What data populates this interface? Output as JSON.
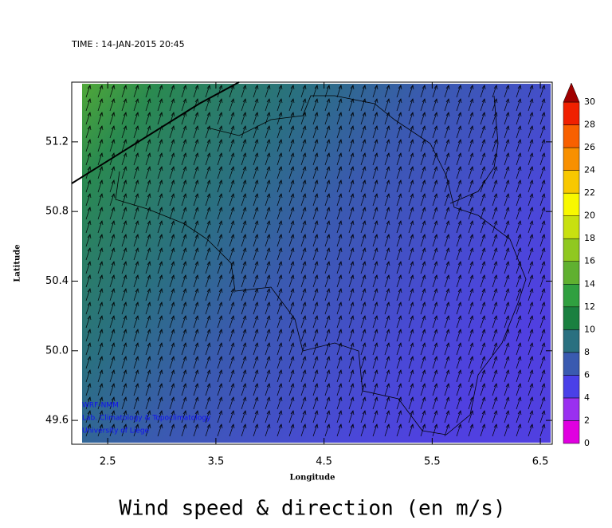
{
  "time_label": "TIME : 14-JAN-2015 20:45",
  "chart_data": {
    "type": "map",
    "title": "Wind speed & direction (en m/s)",
    "x_label": "Longitude",
    "y_label": "Latitude",
    "xlim": [
      2.167,
      6.61
    ],
    "xticks": [
      2.5,
      3.5,
      4.5,
      5.5,
      6.5
    ],
    "ylim": [
      49.463,
      51.543
    ],
    "yticks": [
      49.6,
      {
        "value": 50,
        "label": "50.0"
      },
      50.4,
      50.8,
      51.2
    ],
    "colorbar": {
      "levels": [
        0,
        2,
        4,
        6,
        8,
        10,
        12,
        14,
        16,
        18,
        20,
        22,
        24,
        26,
        28,
        30
      ],
      "colors": [
        "#e000e0",
        "#9a30f0",
        "#4a40e8",
        "#3a5ab0",
        "#2a7080",
        "#1a8040",
        "#30a040",
        "#60b030",
        "#90c820",
        "#c8e010",
        "#f8f800",
        "#f8c800",
        "#f89000",
        "#f86000",
        "#f02000"
      ],
      "over_color": "#a00000"
    },
    "credits": [
      "WRF-NMM",
      "Lab. Climatology & Topoclimatology",
      "University of Liege"
    ]
  }
}
